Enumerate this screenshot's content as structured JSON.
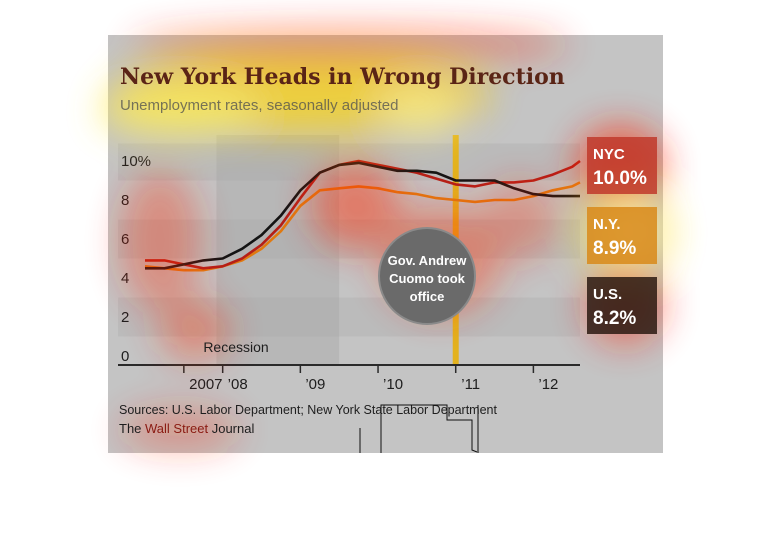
{
  "colors": {
    "panel": "#c4c4c4",
    "band": "#b5b5b5",
    "title": "#5a2416",
    "subtitle": "#4e4e4e",
    "nyc": "#b51f17",
    "ny": "#e07a10",
    "us": "#141414",
    "marker": "#e3b21e",
    "bubble": "#6a6a6a"
  },
  "chart_data": {
    "type": "line",
    "title": "New York Heads in Wrong Direction",
    "subtitle": "Unemployment rates, seasonally adjusted",
    "ylim": [
      0,
      10.5
    ],
    "xlim": [
      2007.0,
      2012.75
    ],
    "yticks": [
      {
        "value": 0,
        "label": "0"
      },
      {
        "value": 2,
        "label": "2"
      },
      {
        "value": 4,
        "label": "4"
      },
      {
        "value": 6,
        "label": "6"
      },
      {
        "value": 8,
        "label": "8"
      },
      {
        "value": 10,
        "label": "10%"
      }
    ],
    "xticks": [
      {
        "value": 2007.5,
        "label": "2007"
      },
      {
        "value": 2008.0,
        "label": "’08"
      },
      {
        "value": 2009.0,
        "label": "’09"
      },
      {
        "value": 2010.0,
        "label": "’10"
      },
      {
        "value": 2011.0,
        "label": "’11"
      },
      {
        "value": 2012.0,
        "label": "’12"
      }
    ],
    "recession": {
      "start": 2007.92,
      "end": 2009.5,
      "label": "Recession"
    },
    "event": {
      "x": 2011.0,
      "label": [
        "Gov. Andrew",
        "Cuomo took",
        "office"
      ]
    },
    "series": [
      {
        "name": "NYC",
        "value_label": "10.0%",
        "key": "nyc",
        "x": [
          2007.0,
          2007.25,
          2007.5,
          2007.75,
          2008.0,
          2008.25,
          2008.5,
          2008.75,
          2009.0,
          2009.25,
          2009.5,
          2009.75,
          2010.0,
          2010.25,
          2010.5,
          2010.75,
          2011.0,
          2011.25,
          2011.5,
          2011.75,
          2012.0,
          2012.25,
          2012.5,
          2012.6
        ],
        "y": [
          4.9,
          4.9,
          4.7,
          4.5,
          4.6,
          5.0,
          5.7,
          6.7,
          8.1,
          9.4,
          9.8,
          10.0,
          9.8,
          9.6,
          9.4,
          9.1,
          8.8,
          8.7,
          8.9,
          8.9,
          9.0,
          9.3,
          9.7,
          10.0
        ]
      },
      {
        "name": "N.Y.",
        "value_label": "8.9%",
        "key": "ny",
        "x": [
          2007.0,
          2007.25,
          2007.5,
          2007.75,
          2008.0,
          2008.25,
          2008.5,
          2008.75,
          2009.0,
          2009.25,
          2009.5,
          2009.75,
          2010.0,
          2010.25,
          2010.5,
          2010.75,
          2011.0,
          2011.25,
          2011.5,
          2011.75,
          2012.0,
          2012.25,
          2012.5,
          2012.6
        ],
        "y": [
          4.6,
          4.5,
          4.4,
          4.4,
          4.6,
          4.9,
          5.5,
          6.4,
          7.7,
          8.5,
          8.6,
          8.7,
          8.6,
          8.4,
          8.3,
          8.1,
          8.0,
          7.9,
          8.0,
          8.0,
          8.2,
          8.5,
          8.7,
          8.9
        ]
      },
      {
        "name": "U.S.",
        "value_label": "8.2%",
        "key": "us",
        "x": [
          2007.0,
          2007.25,
          2007.5,
          2007.75,
          2008.0,
          2008.25,
          2008.5,
          2008.75,
          2009.0,
          2009.25,
          2009.5,
          2009.75,
          2010.0,
          2010.25,
          2010.5,
          2010.75,
          2011.0,
          2011.25,
          2011.5,
          2011.75,
          2012.0,
          2012.25,
          2012.5,
          2012.6
        ],
        "y": [
          4.5,
          4.5,
          4.7,
          4.9,
          5.0,
          5.5,
          6.2,
          7.2,
          8.5,
          9.4,
          9.8,
          9.9,
          9.7,
          9.5,
          9.5,
          9.4,
          9.0,
          9.0,
          9.0,
          8.6,
          8.3,
          8.2,
          8.2,
          8.2
        ]
      }
    ],
    "sources": "Sources: U.S. Labor Department; New York State Labor Department",
    "brand": {
      "prefix": "The ",
      "highlight": "Wall Street",
      "suffix": " Journal"
    },
    "grid": false,
    "legend": "right"
  }
}
